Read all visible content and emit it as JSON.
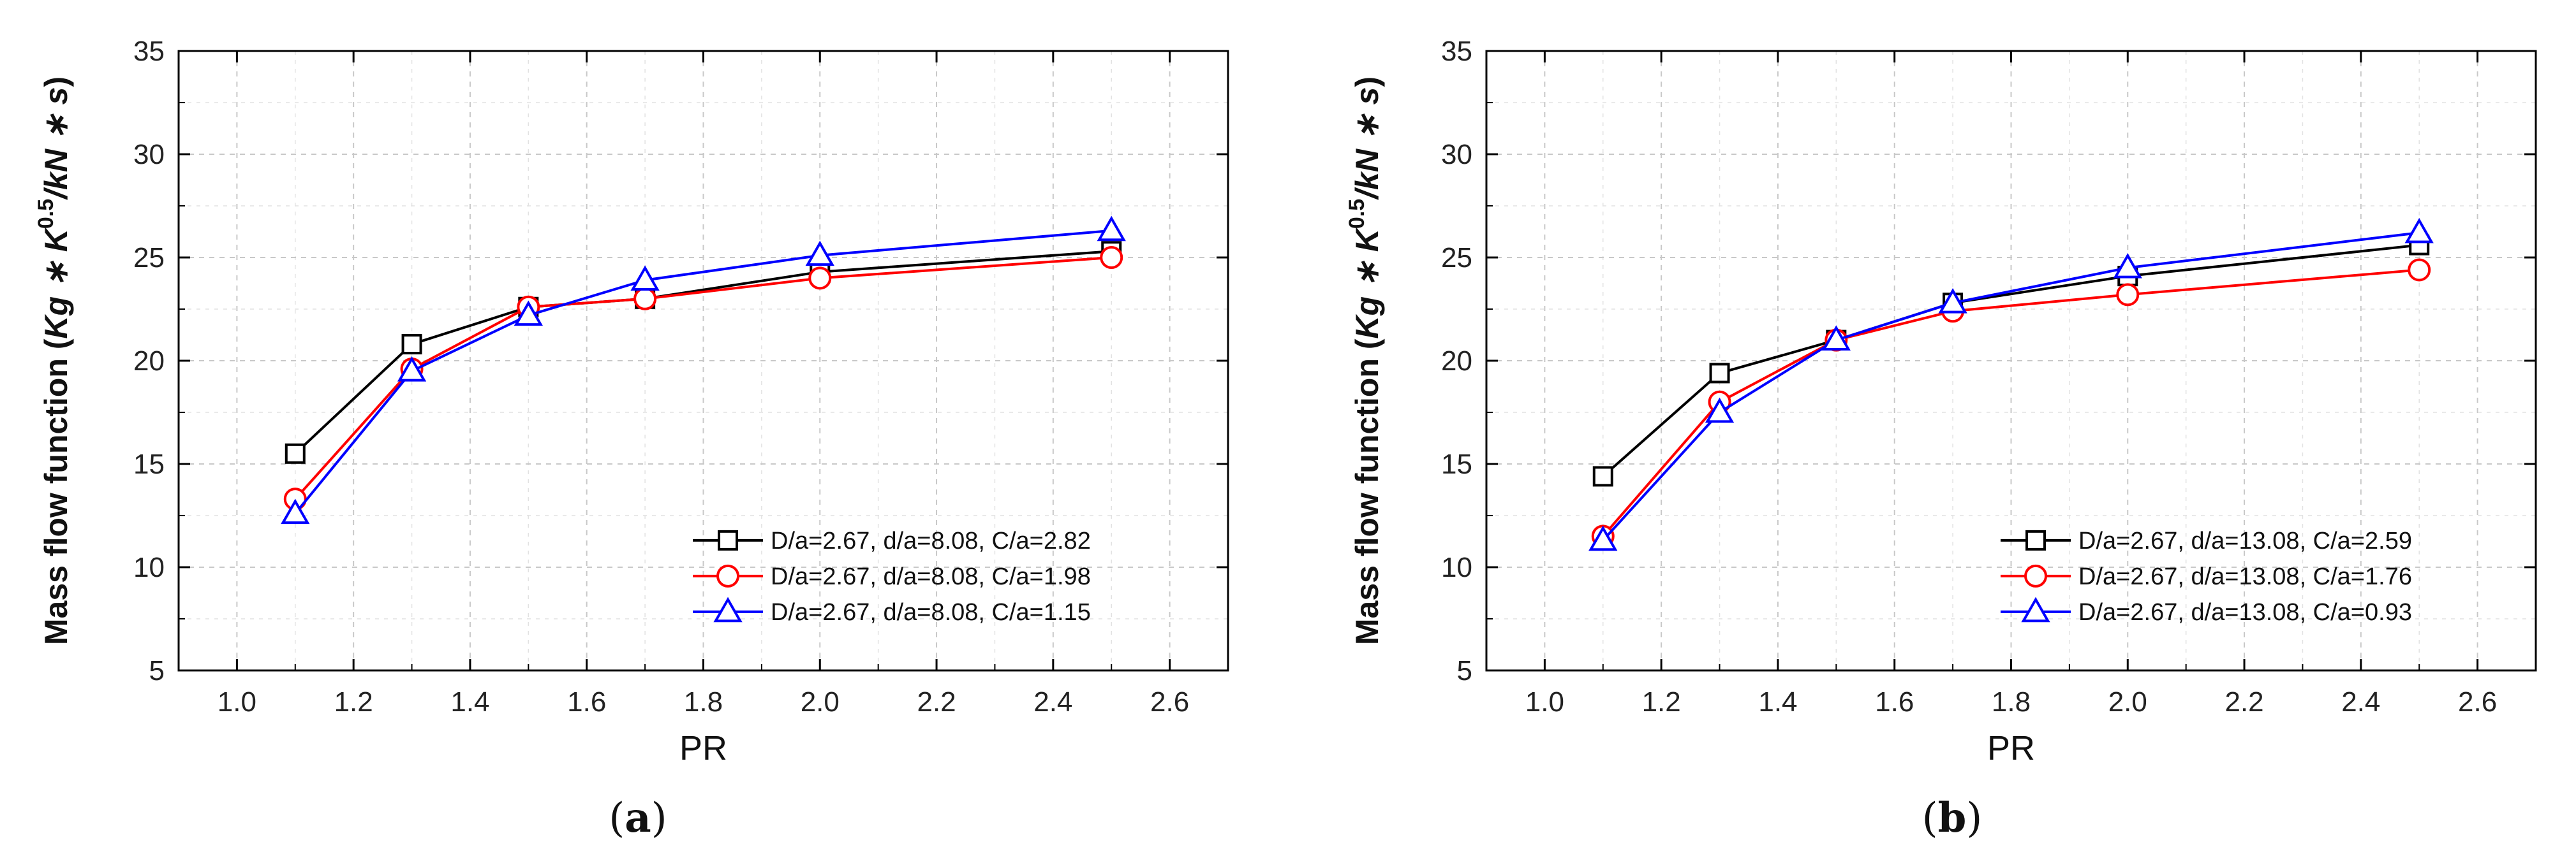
{
  "chart_data": [
    {
      "type": "line",
      "panel": "a",
      "caption": {
        "open": "(",
        "letter": "a",
        "close": ")"
      },
      "xlabel": "PR",
      "ylabel": {
        "prefix": "Mass flow function (",
        "k1": "Kg",
        "op1": " ∗ ",
        "k2": "K",
        "exp": "0.5",
        "slash": "/",
        "k3": "kN",
        "op2": " ∗ ",
        "k4": "s",
        "suffix": ")"
      },
      "xlim": [
        0.9,
        2.7
      ],
      "ylim": [
        5,
        35
      ],
      "xticks": [
        "1.0",
        "1.2",
        "1.4",
        "1.6",
        "1.8",
        "2.0",
        "2.2",
        "2.4",
        "2.6"
      ],
      "yticks": [
        "5",
        "10",
        "15",
        "20",
        "25",
        "30",
        "35"
      ],
      "grid": true,
      "legend_position": "bottom-right",
      "x": [
        1.1,
        1.3,
        1.5,
        1.7,
        2.0,
        2.5
      ],
      "series": [
        {
          "name": "D/a=2.67, d/a=8.08, C/a=2.82",
          "color": "#000000",
          "marker": "square",
          "values": [
            15.5,
            20.8,
            22.6,
            23.0,
            24.3,
            25.3
          ]
        },
        {
          "name": "D/a=2.67, d/a=8.08, C/a=1.98",
          "color": "#ff0000",
          "marker": "circle",
          "values": [
            13.3,
            19.6,
            22.6,
            23.0,
            24.0,
            25.0
          ]
        },
        {
          "name": "D/a=2.67, d/a=8.08, C/a=1.15",
          "color": "#0000ff",
          "marker": "triangle",
          "values": [
            12.6,
            19.5,
            22.2,
            23.9,
            25.1,
            26.3
          ]
        }
      ]
    },
    {
      "type": "line",
      "panel": "b",
      "caption": {
        "open": "(",
        "letter": "b",
        "close": ")"
      },
      "xlabel": "PR",
      "ylabel": {
        "prefix": "Mass flow function (",
        "k1": "Kg",
        "op1": " ∗ ",
        "k2": "K",
        "exp": "0.5",
        "slash": "/",
        "k3": "kN",
        "op2": " ∗ ",
        "k4": "s",
        "suffix": ")"
      },
      "xlim": [
        0.9,
        2.7
      ],
      "ylim": [
        5,
        35
      ],
      "xticks": [
        "1.0",
        "1.2",
        "1.4",
        "1.6",
        "1.8",
        "2.0",
        "2.2",
        "2.4",
        "2.6"
      ],
      "yticks": [
        "5",
        "10",
        "15",
        "20",
        "25",
        "30",
        "35"
      ],
      "grid": true,
      "legend_position": "bottom-right",
      "x": [
        1.1,
        1.3,
        1.5,
        1.7,
        2.0,
        2.5
      ],
      "series": [
        {
          "name": "D/a=2.67, d/a=13.08, C/a=2.59",
          "color": "#000000",
          "marker": "square",
          "values": [
            14.4,
            19.4,
            21.0,
            22.8,
            24.1,
            25.6
          ]
        },
        {
          "name": "D/a=2.67, d/a=13.08, C/a=1.76",
          "color": "#ff0000",
          "marker": "circle",
          "values": [
            11.5,
            18.0,
            21.0,
            22.4,
            23.2,
            24.4
          ]
        },
        {
          "name": "D/a=2.67, d/a=13.08, C/a=0.93",
          "color": "#0000ff",
          "marker": "triangle",
          "values": [
            11.3,
            17.5,
            21.0,
            22.8,
            24.5,
            26.2
          ]
        }
      ]
    }
  ]
}
